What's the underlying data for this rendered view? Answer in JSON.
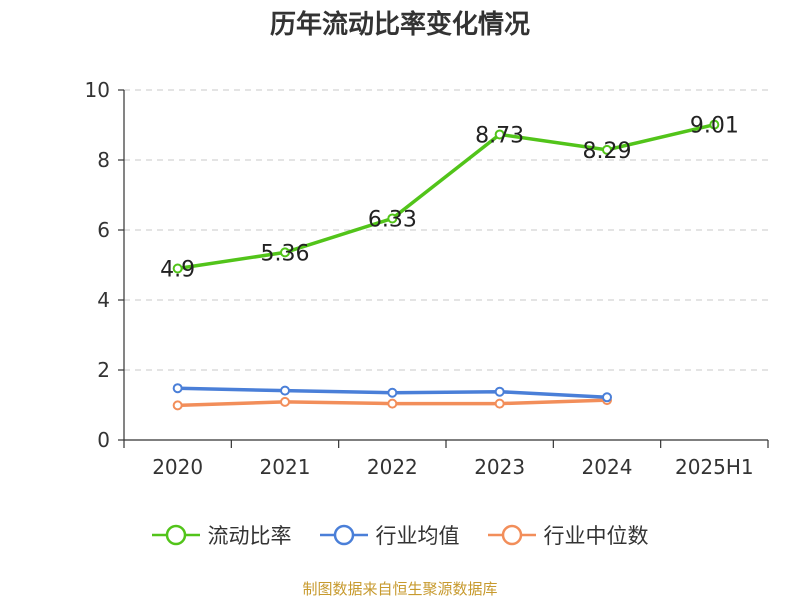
{
  "chart_data": {
    "type": "line",
    "title": "历年流动比率变化情况",
    "categories": [
      "2020",
      "2021",
      "2022",
      "2023",
      "2024",
      "2025H1"
    ],
    "ylim": [
      0,
      10
    ],
    "yticks": [
      0,
      2,
      4,
      6,
      8,
      10
    ],
    "grid": true,
    "legend_position": "bottom",
    "series": [
      {
        "name": "流动比率",
        "color": "#52c41a",
        "values": [
          4.9,
          5.36,
          6.33,
          8.73,
          8.29,
          9.01
        ],
        "labels": [
          "4.9",
          "5.36",
          "6.33",
          "8.73",
          "8.29",
          "9.01"
        ]
      },
      {
        "name": "行业均值",
        "color": "#4a7fd8",
        "values": [
          1.48,
          1.41,
          1.35,
          1.38,
          1.22,
          null
        ]
      },
      {
        "name": "行业中位数",
        "color": "#f28e5a",
        "values": [
          0.99,
          1.09,
          1.04,
          1.04,
          1.14,
          null
        ]
      }
    ]
  },
  "footer": {
    "source": "制图数据来自恒生聚源数据库"
  }
}
